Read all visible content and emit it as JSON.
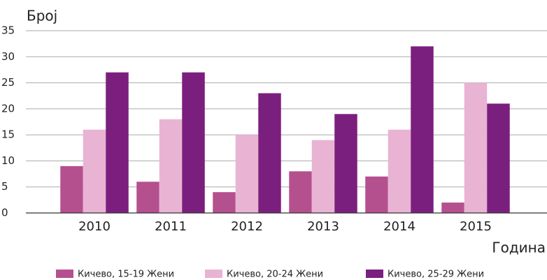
{
  "chart_data": {
    "type": "bar",
    "y_label": "Број",
    "x_label": "Година",
    "categories": [
      "2010",
      "2011",
      "2012",
      "2013",
      "2014",
      "2015"
    ],
    "series": [
      {
        "name": "Кичево, 15-19 Жени",
        "color": "#b5508f",
        "values": [
          9,
          6,
          4,
          8,
          7,
          2
        ]
      },
      {
        "name": "Кичево, 20-24 Жени",
        "color": "#e9b3d3",
        "values": [
          16,
          18,
          15,
          14,
          16,
          25
        ]
      },
      {
        "name": "Кичево, 25-29 Жени",
        "color": "#7b1f7e",
        "values": [
          27,
          27,
          23,
          19,
          32,
          21
        ]
      }
    ],
    "ylim": [
      0,
      35
    ],
    "yticks": [
      0,
      5,
      10,
      15,
      20,
      25,
      30,
      35
    ],
    "grid": true
  }
}
